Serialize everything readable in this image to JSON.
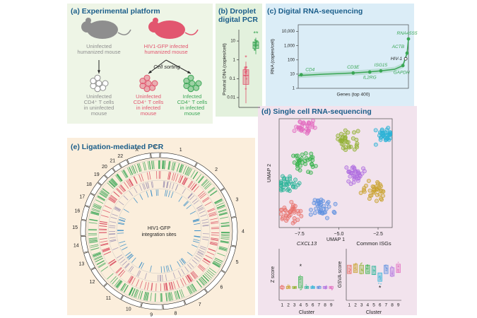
{
  "panels": {
    "a": {
      "title": "(a) Experimental platform",
      "mice": [
        {
          "lines": [
            "Uninfected",
            "humanized mouse"
          ],
          "color": "#8e8e8e"
        },
        {
          "lines": [
            "HIV1-GFP infected",
            "humanized mouse"
          ],
          "color": "#e2566f"
        }
      ],
      "sorting": "Cell sorting",
      "groups": [
        {
          "lines": [
            "Uninfected",
            "CD4⁺ T cells",
            "in uninfected",
            "mouse"
          ],
          "color": "#8e8e8e"
        },
        {
          "lines": [
            "Uninfected",
            "CD4⁺ T cells",
            "in infected",
            "mouse"
          ],
          "color": "#e2566f"
        },
        {
          "lines": [
            "Infected",
            "CD4⁺ T cells",
            "in infected",
            "mouse"
          ],
          "color": "#3aa655"
        }
      ]
    },
    "b": {
      "type": "box",
      "title_lines": [
        "(b) Droplet",
        "digital PCR"
      ],
      "ylabel": "Proviral DNA (copies/cell)",
      "log": true,
      "ylim": [
        0.003,
        40
      ],
      "yticks": [
        10,
        1,
        0.1,
        0.01
      ],
      "boxes": [
        {
          "color": "#e2566f",
          "min": 0.005,
          "q1": 0.05,
          "median": 0.15,
          "q3": 0.3,
          "max": 0.8,
          "mark": "*"
        },
        {
          "color": "#3aa655",
          "min": 2,
          "q1": 4,
          "median": 6,
          "q3": 9,
          "max": 15,
          "mark": "**"
        }
      ]
    },
    "c": {
      "type": "line",
      "title": "(c) Digital RNA-sequencing",
      "ylabel": "RNA (copies/cell)",
      "xlabel": "Genes (top 400)",
      "log": true,
      "xlim": [
        1,
        400
      ],
      "ylim": [
        1,
        30000
      ],
      "yticks": [
        1,
        10,
        100,
        {
          "value": 1000,
          "label": "1,000"
        },
        {
          "value": 10000,
          "label": "10,000"
        }
      ],
      "color": "#3aa655",
      "x": [
        1,
        50,
        100,
        150,
        200,
        250,
        300,
        350,
        380,
        395,
        400
      ],
      "values": [
        8,
        9,
        10,
        11,
        12,
        14,
        17,
        22,
        40,
        300,
        3000
      ],
      "annotations": [
        {
          "label": "CD4",
          "x": 12,
          "value": 9
        },
        {
          "label": "CD3E",
          "x": 200,
          "value": 12
        },
        {
          "label": "ISG15",
          "x": 300,
          "value": 17
        },
        {
          "label": "IL2RG",
          "x": 260,
          "value": 14
        },
        {
          "label": "GAPDH",
          "x": 380,
          "value": 40
        },
        {
          "label": "ACTB",
          "x": 395,
          "value": 300
        },
        {
          "label": "RNA45S5",
          "x": 400,
          "value": 3000
        },
        {
          "label": "HIV-1",
          "x": 390,
          "value": 120
        }
      ]
    },
    "d": {
      "title": "(d) Single cell RNA-sequencing",
      "umap": {
        "type": "scatter",
        "xlabel": "UMAP 1",
        "ylabel": "UMAP 2",
        "xlim": [
          -8.8,
          -1.6
        ],
        "xticks": [
          {
            "value": -7.5,
            "label": "−7.5"
          },
          {
            "value": -5.0,
            "label": "−5.0"
          },
          {
            "value": -2.5,
            "label": "−2.5"
          }
        ]
      },
      "clusters": {
        "categories": [
          "1",
          "2",
          "3",
          "4",
          "5",
          "6",
          "7",
          "8",
          "9"
        ],
        "colors": [
          "#e8706a",
          "#c9a12c",
          "#8fb02f",
          "#35b34a",
          "#2fb59a",
          "#2bb3d6",
          "#5d8fe0",
          "#b06ee0",
          "#e36cc0"
        ]
      },
      "plots": [
        {
          "type": "box",
          "title": "CXCL13",
          "ylabel": "Z score",
          "xlabel": "Cluster",
          "ylim": [
            -1,
            3
          ],
          "values": [
            0,
            0,
            0,
            0.4,
            0,
            0,
            0,
            0,
            0
          ],
          "mark": "*",
          "mark_index": 3
        },
        {
          "type": "box",
          "title": "Common ISGs",
          "ylabel": "GSVA score",
          "xlabel": "Cluster",
          "ylim": [
            0,
            1
          ],
          "values": [
            0.6,
            0.62,
            0.6,
            0.6,
            0.58,
            0.45,
            0.6,
            0.55,
            0.62
          ],
          "mark": "*",
          "mark_index": 5
        }
      ]
    },
    "e": {
      "title": "(e) Ligation-mediated PCR",
      "center_lines": [
        "HIV1-GFP",
        "integration sites"
      ],
      "chromosomes": [
        "1",
        "2",
        "3",
        "4",
        "5",
        "6",
        "7",
        "8",
        "9",
        "10",
        "11",
        "12",
        "13",
        "14",
        "15",
        "16",
        "17",
        "18",
        "19",
        "20",
        "21",
        "22",
        "X",
        "Y"
      ]
    }
  }
}
